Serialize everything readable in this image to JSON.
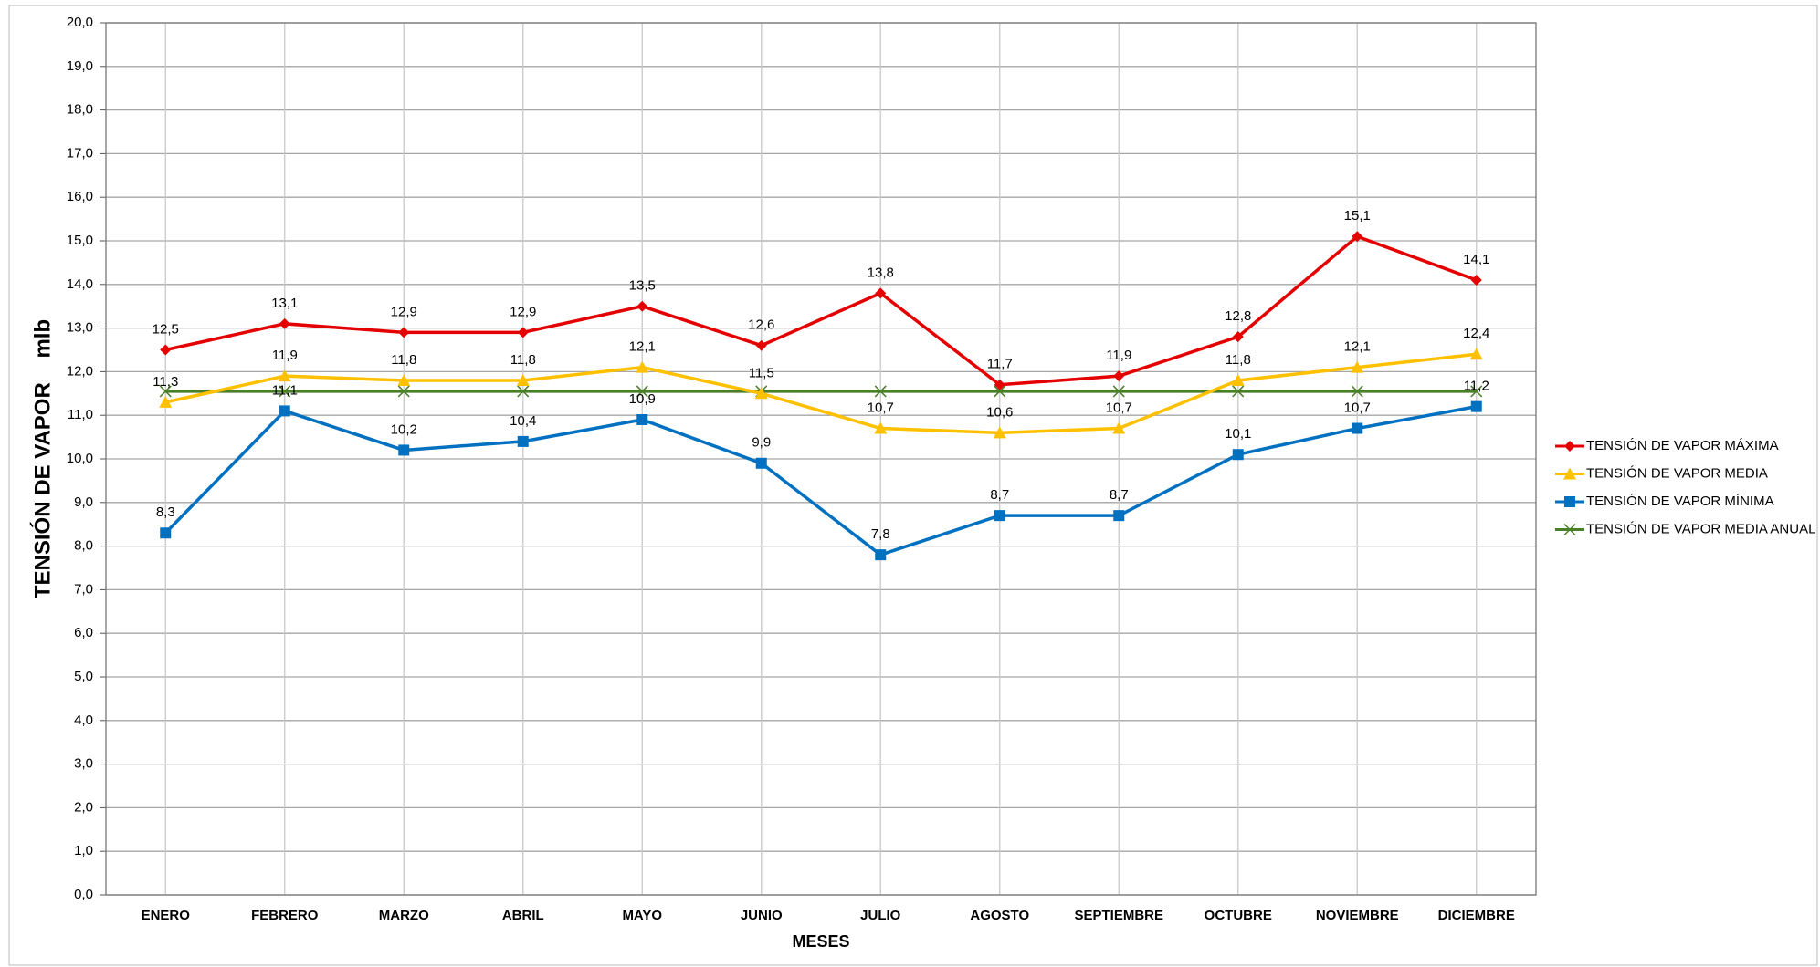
{
  "chart_data": {
    "type": "line",
    "x_label": "MESES",
    "y_label": "TENSIÓN DE VAPOR    mlb",
    "categories": [
      "ENERO",
      "FEBRERO",
      "MARZO",
      "ABRIL",
      "MAYO",
      "JUNIO",
      "JULIO",
      "AGOSTO",
      "SEPTIEMBRE",
      "OCTUBRE",
      "NOVIEMBRE",
      "DICIEMBRE"
    ],
    "series": [
      {
        "name": "TENSIÓN DE VAPOR MÁXIMA",
        "color": "#e50000",
        "marker": "diamond",
        "values": [
          12.5,
          13.1,
          12.9,
          12.9,
          13.5,
          12.6,
          13.8,
          11.7,
          11.9,
          12.8,
          15.1,
          14.1
        ],
        "value_labels": [
          "12,5",
          "13,1",
          "12,9",
          "12,9",
          "13,5",
          "12,6",
          "13,8",
          "11,7",
          "11,9",
          "12,8",
          "15,1",
          "14,1"
        ]
      },
      {
        "name": "TENSIÓN DE VAPOR MEDIA",
        "color": "#ffc000",
        "marker": "triangle",
        "values": [
          11.3,
          11.9,
          11.8,
          11.8,
          12.1,
          11.5,
          10.7,
          10.6,
          10.7,
          11.8,
          12.1,
          12.4
        ],
        "value_labels": [
          "11,3",
          "11,9",
          "11,8",
          "11,8",
          "12,1",
          "11,5",
          "10,7",
          "10,6",
          "10,7",
          "11,8",
          "12,1",
          "12,4"
        ]
      },
      {
        "name": "TENSIÓN DE VAPOR MÍNIMA",
        "color": "#0070c0",
        "marker": "square",
        "values": [
          8.3,
          11.1,
          10.2,
          10.4,
          10.9,
          9.9,
          7.8,
          8.7,
          8.7,
          10.1,
          10.7,
          11.2
        ],
        "value_labels": [
          "8,3",
          "11,1",
          "10,2",
          "10,4",
          "10,9",
          "9,9",
          "7,8",
          "8,7",
          "8,7",
          "10,1",
          "10,7",
          "11,2"
        ]
      },
      {
        "name": "TENSIÓN DE VAPOR MEDIA ANUAL",
        "color": "#4a7f2a",
        "marker": "x",
        "values": [
          11.55,
          11.55,
          11.55,
          11.55,
          11.55,
          11.55,
          11.55,
          11.55,
          11.55,
          11.55,
          11.55,
          11.55
        ]
      }
    ],
    "ylim": [
      0,
      20
    ],
    "yticks": [
      {
        "value": 0,
        "label": "0,0"
      },
      {
        "value": 1,
        "label": "1,0"
      },
      {
        "value": 2,
        "label": "2,0"
      },
      {
        "value": 3,
        "label": "3,0"
      },
      {
        "value": 4,
        "label": "4,0"
      },
      {
        "value": 5,
        "label": "5,0"
      },
      {
        "value": 6,
        "label": "6,0"
      },
      {
        "value": 7,
        "label": "7,0"
      },
      {
        "value": 8,
        "label": "8,0"
      },
      {
        "value": 9,
        "label": "9,0"
      },
      {
        "value": 10,
        "label": "10,0"
      },
      {
        "value": 11,
        "label": "11,0"
      },
      {
        "value": 12,
        "label": "12,0"
      },
      {
        "value": 13,
        "label": "13,0"
      },
      {
        "value": 14,
        "label": "14,0"
      },
      {
        "value": 15,
        "label": "15,0"
      },
      {
        "value": 16,
        "label": "16,0"
      },
      {
        "value": 17,
        "label": "17,0"
      },
      {
        "value": 18,
        "label": "18,0"
      },
      {
        "value": 19,
        "label": "19,0"
      },
      {
        "value": 20,
        "label": "20,0"
      }
    ],
    "grid": true,
    "legend": "right"
  }
}
